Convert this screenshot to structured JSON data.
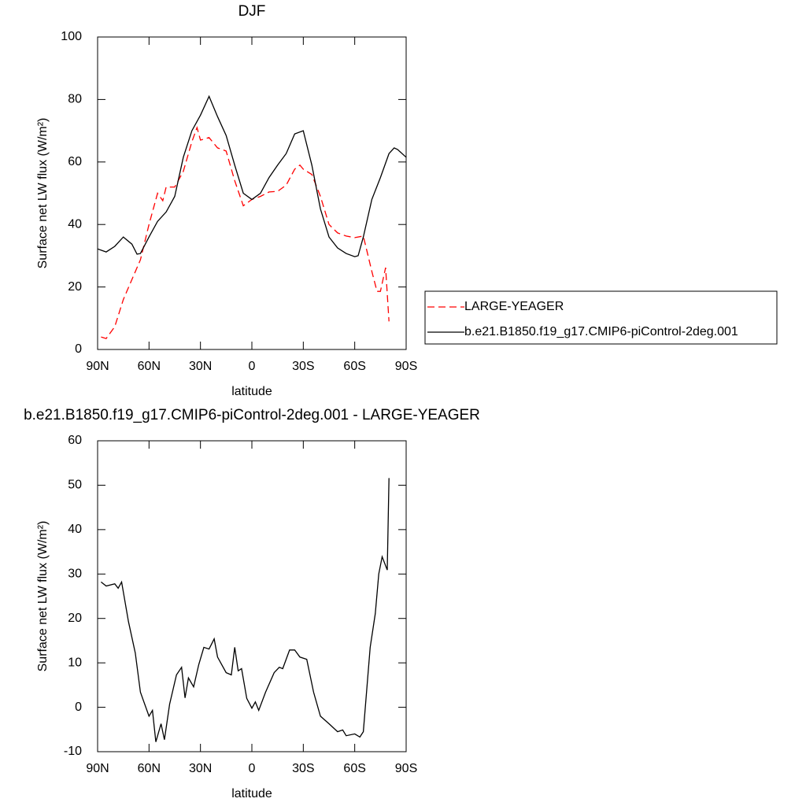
{
  "chart_data": [
    {
      "type": "line",
      "title": "DJF",
      "x_label": "latitude",
      "y_label": "Surface net LW flux (W/m²)",
      "xlim": [
        90,
        -90
      ],
      "xticks": [
        {
          "value": 90,
          "label": "90N"
        },
        {
          "value": 60,
          "label": "60N"
        },
        {
          "value": 30,
          "label": "30N"
        },
        0,
        {
          "value": -30,
          "label": "30S"
        },
        {
          "value": -60,
          "label": "60S"
        },
        {
          "value": -90,
          "label": "90S"
        }
      ],
      "ylim": [
        0,
        100
      ],
      "yticks": [
        0,
        20,
        40,
        60,
        80,
        100
      ],
      "legend": "right",
      "series": [
        {
          "name": "LARGE-YEAGER",
          "color": "#ff0000",
          "line_style": "dashed",
          "x": [
            88,
            85,
            80,
            75,
            70,
            65,
            60,
            55,
            52,
            50,
            45,
            40,
            35,
            32,
            30,
            25,
            20,
            15,
            10,
            5,
            0,
            -5,
            -10,
            -15,
            -20,
            -25,
            -28,
            -30,
            -35,
            -40,
            -45,
            -50,
            -55,
            -60,
            -65,
            -70,
            -73,
            -75,
            -78,
            -80
          ],
          "values": [
            4,
            3.5,
            7.3,
            16,
            22.4,
            28.7,
            40,
            50,
            47.6,
            52,
            52,
            57,
            66.5,
            71,
            67,
            67.8,
            64.5,
            63.5,
            54,
            46,
            48,
            49,
            50.4,
            50.6,
            52.6,
            57.7,
            59,
            57.7,
            56,
            49,
            40,
            37.3,
            36.3,
            35.8,
            36.3,
            25,
            18.6,
            18.6,
            26.2,
            9
          ]
        },
        {
          "name": "b.e21.B1850.f19_g17.CMIP6-piControl-2deg.001",
          "color": "#000000",
          "line_style": "solid",
          "x": [
            90,
            85,
            80,
            75,
            70,
            67,
            65,
            60,
            55,
            50,
            45,
            40,
            35,
            30,
            25,
            20,
            15,
            10,
            5,
            0,
            -5,
            -10,
            -15,
            -20,
            -25,
            -30,
            -35,
            -40,
            -45,
            -50,
            -55,
            -60,
            -62,
            -65,
            -70,
            -75,
            -80,
            -83,
            -85,
            -90
          ],
          "values": [
            32.2,
            31.2,
            33,
            36,
            33.7,
            30.5,
            30.7,
            36,
            41,
            44,
            49,
            61.5,
            70,
            75,
            81,
            74.5,
            68.5,
            59,
            50,
            48,
            50,
            55,
            59,
            62.7,
            69,
            70,
            59,
            45,
            36,
            32.5,
            30.7,
            29.7,
            30,
            36,
            48,
            55,
            62.7,
            64.5,
            64,
            61.5
          ]
        }
      ]
    },
    {
      "type": "line",
      "title": "b.e21.B1850.f19_g17.CMIP6-piControl-2deg.001 - LARGE-YEAGER",
      "x_label": "latitude",
      "y_label": "Surface net LW flux (W/m²)",
      "xlim": [
        90,
        -90
      ],
      "xticks": [
        {
          "value": 90,
          "label": "90N"
        },
        {
          "value": 60,
          "label": "60N"
        },
        {
          "value": 30,
          "label": "30N"
        },
        0,
        {
          "value": -30,
          "label": "30S"
        },
        {
          "value": -60,
          "label": "60S"
        },
        {
          "value": -90,
          "label": "90S"
        }
      ],
      "ylim": [
        -10,
        60
      ],
      "yticks": [
        -10,
        0,
        10,
        20,
        30,
        40,
        50,
        60
      ],
      "color": "#000000",
      "x": [
        88,
        85,
        80,
        78,
        76,
        72,
        68,
        65,
        60,
        58,
        56,
        53,
        51,
        48,
        44,
        41,
        39,
        37,
        34,
        31,
        28,
        25,
        22,
        20,
        15,
        12,
        10,
        8,
        6,
        3,
        0,
        -2,
        -4,
        -8,
        -13,
        -16,
        -18,
        -22,
        -25,
        -28,
        -32,
        -36,
        -40,
        -45,
        -50,
        -53,
        -55,
        -60,
        -63,
        -65,
        -69,
        -72,
        -74,
        -76,
        -79,
        -80
      ],
      "values": [
        28.2,
        27.3,
        27.8,
        26.8,
        28.2,
        19.3,
        12.2,
        3.4,
        -2,
        -0.7,
        -7.8,
        -3.7,
        -7.3,
        0.7,
        7.3,
        9,
        2.1,
        6.6,
        4.6,
        9.6,
        13.5,
        13.1,
        15.4,
        11.3,
        7.8,
        7.3,
        13.5,
        8.2,
        8.7,
        2,
        -0.2,
        1.2,
        -0.7,
        3.4,
        7.8,
        9,
        8.7,
        12.9,
        12.9,
        11.3,
        10.8,
        3.4,
        -2,
        -3.7,
        -5.5,
        -5.1,
        -6.4,
        -6,
        -6.7,
        -5.5,
        13.5,
        21.1,
        30,
        33.9,
        30.9,
        51.6
      ]
    }
  ]
}
